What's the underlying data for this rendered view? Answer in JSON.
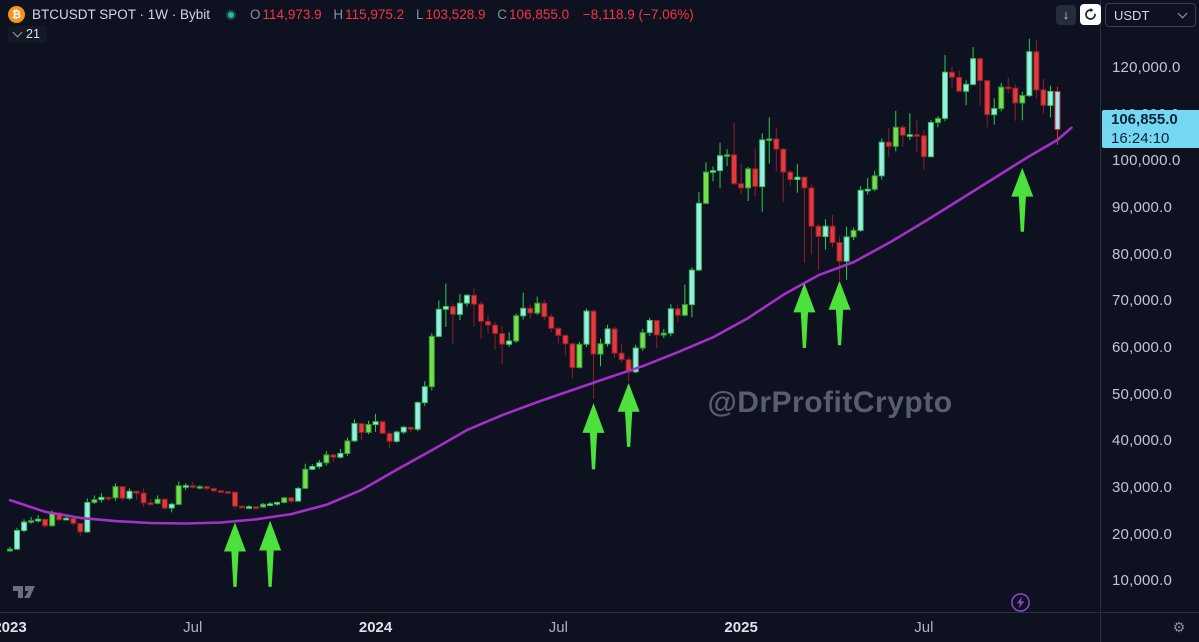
{
  "header": {
    "title": "BTCUSDT SPOT · 1W · Bybit",
    "ohlc": {
      "o_label": "O",
      "o": "114,973.9",
      "h_label": "H",
      "h": "115,975.2",
      "l_label": "L",
      "l": "103,528.9",
      "c_label": "C",
      "c": "106,855.0"
    },
    "change": "−8,118.9 (−7.06%)"
  },
  "legend": {
    "ma_length": "21"
  },
  "toolbar": {
    "currency": "USDT",
    "download_icon": "↓",
    "gear_icon": "⚙"
  },
  "watermark": "@DrProfitCrypto",
  "price_badge": {
    "price": "106,855.0",
    "time": "16:24:10"
  },
  "colors": {
    "background": "#0d1120",
    "up_body": "#9fe8f2",
    "up_border": "#2ecc4f",
    "lime_body": "#77dd4a",
    "lime_border": "#2b9e3c",
    "down_body": "#e5383f",
    "down_border": "#8e2026",
    "last_body": "#9fe8f2",
    "last_border": "#d8333c",
    "ma": "#a52fc9",
    "arrow": "#4ce13c",
    "badge_bg": "#76d7f2",
    "badge_text": "#07243a",
    "ohlc_value": "#f23645",
    "axis_text": "#c3c7d1",
    "watermark": "#6b7280"
  },
  "chart_data": {
    "type": "candlestick",
    "title": "BTCUSDT SPOT 1W Bybit",
    "interval": "1W",
    "grid": false,
    "legend_position": "top-left",
    "y_axis": {
      "unit": "USDT",
      "range_k": [
        0,
        134.5
      ],
      "labels": [
        {
          "v": 120000,
          "label": "120,000.0"
        },
        {
          "v": 110000,
          "label": "110,000.0"
        },
        {
          "v": 100000,
          "label": "100,000.0"
        },
        {
          "v": 90000,
          "label": "90,000.0"
        },
        {
          "v": 80000,
          "label": "80,000.0"
        },
        {
          "v": 70000,
          "label": "70,000.0"
        },
        {
          "v": 60000,
          "label": "60,000.0"
        },
        {
          "v": 50000,
          "label": "50,000.0"
        },
        {
          "v": 40000,
          "label": "40,000.0"
        },
        {
          "v": 30000,
          "label": "30,000.0"
        },
        {
          "v": 20000,
          "label": "20,000.0"
        },
        {
          "v": 10000,
          "label": "10,000.0"
        }
      ]
    },
    "x_axis": {
      "ticks": [
        {
          "week": 0,
          "label": "2023",
          "bold": true
        },
        {
          "week": 26,
          "label": "Jul",
          "bold": false
        },
        {
          "week": 52,
          "label": "2024",
          "bold": true
        },
        {
          "week": 78,
          "label": "Jul",
          "bold": false
        },
        {
          "week": 104,
          "label": "2025",
          "bold": true
        },
        {
          "week": 130,
          "label": "Jul",
          "bold": false
        }
      ]
    },
    "candles_format": [
      "open_k",
      "high_k",
      "low_k",
      "close_k"
    ],
    "candles": [
      [
        16.5,
        17.4,
        16.3,
        16.9
      ],
      [
        16.9,
        21.5,
        16.9,
        20.9
      ],
      [
        20.9,
        23.3,
        20.5,
        22.7
      ],
      [
        22.7,
        23.8,
        22.3,
        23.0
      ],
      [
        23.0,
        24.2,
        22.6,
        23.3
      ],
      [
        23.3,
        23.4,
        21.4,
        21.9
      ],
      [
        21.9,
        25.2,
        21.7,
        24.6
      ],
      [
        24.6,
        24.9,
        23.0,
        23.2
      ],
      [
        23.2,
        24.1,
        23.1,
        23.5
      ],
      [
        23.5,
        23.6,
        21.9,
        22.4
      ],
      [
        22.4,
        22.5,
        19.6,
        20.6
      ],
      [
        20.6,
        27.8,
        20.4,
        26.9
      ],
      [
        26.9,
        28.4,
        26.6,
        27.5
      ],
      [
        27.5,
        28.9,
        26.9,
        28.0
      ],
      [
        28.0,
        28.1,
        27.2,
        27.9
      ],
      [
        27.9,
        31.0,
        27.3,
        30.3
      ],
      [
        30.3,
        30.4,
        27.2,
        27.8
      ],
      [
        27.8,
        29.9,
        27.4,
        29.3
      ],
      [
        29.3,
        29.4,
        27.5,
        28.9
      ],
      [
        28.9,
        29.9,
        25.9,
        26.8
      ],
      [
        26.8,
        27.7,
        26.1,
        26.7
      ],
      [
        26.7,
        28.4,
        26.5,
        27.6
      ],
      [
        27.6,
        27.7,
        25.3,
        25.7
      ],
      [
        25.7,
        26.8,
        24.8,
        26.5
      ],
      [
        26.5,
        31.4,
        26.3,
        30.5
      ],
      [
        30.5,
        31.0,
        29.5,
        30.5
      ],
      [
        30.5,
        31.3,
        29.9,
        30.3
      ],
      [
        30.3,
        30.6,
        29.7,
        30.3
      ],
      [
        30.3,
        30.4,
        29.5,
        29.9
      ],
      [
        29.9,
        30.0,
        29.0,
        29.4
      ],
      [
        29.4,
        29.5,
        28.9,
        29.2
      ],
      [
        29.2,
        29.4,
        28.8,
        29.1
      ],
      [
        29.1,
        29.2,
        25.4,
        26.1
      ],
      [
        26.1,
        26.3,
        25.8,
        26.0
      ],
      [
        26.0,
        26.3,
        25.6,
        26.0
      ],
      [
        26.0,
        26.1,
        25.3,
        25.9
      ],
      [
        25.9,
        26.8,
        25.8,
        26.5
      ],
      [
        26.5,
        27.0,
        26.3,
        26.6
      ],
      [
        26.6,
        27.1,
        26.2,
        26.9
      ],
      [
        26.9,
        28.1,
        26.7,
        27.9
      ],
      [
        27.9,
        28.0,
        26.8,
        27.2
      ],
      [
        27.2,
        30.2,
        27.1,
        29.9
      ],
      [
        29.9,
        35.2,
        29.8,
        34.0
      ],
      [
        34.0,
        35.1,
        33.9,
        34.6
      ],
      [
        34.6,
        36.0,
        34.1,
        35.4
      ],
      [
        35.4,
        37.9,
        34.8,
        37.1
      ],
      [
        37.1,
        37.4,
        35.6,
        36.6
      ],
      [
        36.6,
        38.4,
        36.3,
        37.4
      ],
      [
        37.4,
        40.8,
        36.9,
        40.1
      ],
      [
        40.1,
        44.7,
        39.9,
        43.8
      ],
      [
        43.8,
        44.0,
        40.2,
        41.9
      ],
      [
        41.9,
        44.4,
        41.5,
        43.6
      ],
      [
        43.6,
        45.9,
        42.0,
        44.2
      ],
      [
        44.2,
        44.4,
        41.5,
        41.7
      ],
      [
        41.7,
        42.2,
        38.5,
        40.0
      ],
      [
        40.0,
        42.3,
        39.7,
        42.0
      ],
      [
        42.0,
        43.3,
        41.6,
        43.0
      ],
      [
        43.0,
        43.1,
        41.9,
        42.6
      ],
      [
        42.6,
        48.6,
        42.2,
        48.3
      ],
      [
        48.3,
        52.9,
        47.6,
        51.7
      ],
      [
        51.7,
        63.2,
        50.9,
        62.5
      ],
      [
        62.5,
        70.2,
        62.3,
        68.3
      ],
      [
        68.3,
        73.8,
        64.5,
        68.9
      ],
      [
        68.9,
        69.6,
        60.8,
        67.2
      ],
      [
        67.2,
        71.6,
        66.0,
        69.6
      ],
      [
        69.6,
        71.5,
        68.9,
        71.3
      ],
      [
        71.3,
        72.8,
        64.6,
        69.4
      ],
      [
        69.4,
        70.0,
        61.9,
        65.7
      ],
      [
        65.7,
        67.0,
        63.1,
        64.9
      ],
      [
        64.9,
        65.5,
        59.6,
        63.1
      ],
      [
        63.1,
        64.7,
        56.5,
        60.8
      ],
      [
        60.8,
        63.4,
        60.2,
        61.5
      ],
      [
        61.5,
        67.4,
        61.1,
        66.9
      ],
      [
        66.9,
        71.9,
        66.1,
        68.5
      ],
      [
        68.5,
        69.4,
        66.3,
        67.5
      ],
      [
        67.5,
        71.0,
        67.1,
        69.6
      ],
      [
        69.6,
        70.3,
        66.0,
        66.7
      ],
      [
        66.7,
        67.3,
        63.4,
        64.2
      ],
      [
        64.2,
        64.5,
        61.0,
        62.7
      ],
      [
        62.7,
        63.0,
        58.4,
        60.9
      ],
      [
        60.9,
        61.2,
        53.5,
        55.8
      ],
      [
        55.8,
        61.3,
        55.6,
        60.8
      ],
      [
        60.8,
        68.4,
        60.2,
        67.9
      ],
      [
        67.9,
        68.2,
        49.1,
        58.7
      ],
      [
        58.7,
        62.0,
        56.1,
        60.9
      ],
      [
        60.9,
        65.0,
        60.3,
        64.1
      ],
      [
        64.1,
        64.5,
        57.9,
        58.9
      ],
      [
        58.9,
        61.0,
        56.9,
        57.5
      ],
      [
        57.5,
        58.2,
        52.8,
        54.9
      ],
      [
        54.9,
        60.7,
        54.6,
        60.0
      ],
      [
        60.0,
        64.1,
        59.4,
        63.3
      ],
      [
        63.3,
        66.5,
        62.6,
        65.9
      ],
      [
        65.9,
        66.1,
        60.0,
        62.8
      ],
      [
        62.8,
        64.1,
        62.1,
        63.2
      ],
      [
        63.2,
        69.4,
        62.5,
        68.4
      ],
      [
        68.4,
        69.3,
        65.5,
        67.0
      ],
      [
        67.0,
        73.6,
        66.8,
        69.3
      ],
      [
        69.3,
        77.3,
        66.6,
        76.7
      ],
      [
        76.7,
        93.4,
        76.5,
        91.0
      ],
      [
        91.0,
        99.8,
        90.8,
        97.7
      ],
      [
        97.7,
        98.9,
        95.7,
        98.0
      ],
      [
        98.0,
        104.0,
        94.2,
        101.2
      ],
      [
        101.2,
        102.6,
        99.0,
        101.4
      ],
      [
        101.4,
        108.3,
        95.0,
        95.2
      ],
      [
        95.2,
        99.5,
        92.9,
        94.3
      ],
      [
        94.3,
        98.8,
        91.5,
        98.4
      ],
      [
        98.4,
        102.7,
        92.5,
        94.6
      ],
      [
        94.6,
        106.0,
        89.2,
        104.6
      ],
      [
        104.6,
        109.4,
        99.5,
        104.8
      ],
      [
        104.8,
        107.2,
        97.8,
        102.6
      ],
      [
        102.6,
        102.8,
        91.3,
        97.7
      ],
      [
        97.7,
        98.1,
        94.7,
        96.1
      ],
      [
        96.1,
        99.5,
        93.3,
        96.6
      ],
      [
        96.6,
        96.7,
        78.2,
        94.3
      ],
      [
        94.3,
        95.0,
        80.1,
        86.1
      ],
      [
        86.1,
        86.5,
        76.6,
        83.9
      ],
      [
        83.9,
        87.6,
        81.1,
        86.1
      ],
      [
        86.1,
        88.5,
        81.6,
        82.6
      ],
      [
        82.6,
        83.9,
        74.5,
        78.6
      ],
      [
        78.6,
        86.0,
        74.6,
        83.8
      ],
      [
        83.8,
        85.8,
        83.1,
        85.2
      ],
      [
        85.2,
        94.7,
        84.9,
        93.8
      ],
      [
        93.8,
        96.4,
        92.9,
        94.0
      ],
      [
        94.0,
        98.0,
        93.6,
        96.9
      ],
      [
        96.9,
        104.9,
        96.1,
        104.1
      ],
      [
        104.1,
        107.1,
        101.0,
        103.2
      ],
      [
        103.2,
        110.8,
        102.1,
        107.3
      ],
      [
        107.3,
        107.8,
        103.1,
        105.6
      ],
      [
        105.6,
        110.3,
        104.6,
        105.7
      ],
      [
        105.7,
        108.9,
        102.1,
        105.5
      ],
      [
        105.5,
        106.8,
        98.2,
        101.0
      ],
      [
        101.0,
        108.8,
        100.9,
        108.3
      ],
      [
        108.3,
        109.7,
        107.3,
        109.2
      ],
      [
        109.2,
        122.8,
        108.6,
        119.1
      ],
      [
        119.1,
        120.2,
        115.7,
        118.0
      ],
      [
        118.0,
        119.5,
        114.8,
        115.0
      ],
      [
        115.0,
        117.4,
        112.0,
        116.5
      ],
      [
        116.5,
        124.5,
        116.3,
        122.0
      ],
      [
        122.0,
        122.4,
        111.9,
        117.3
      ],
      [
        117.3,
        117.4,
        107.3,
        110.0
      ],
      [
        110.0,
        113.5,
        107.9,
        111.3
      ],
      [
        111.3,
        116.8,
        110.7,
        115.9
      ],
      [
        115.9,
        118.0,
        114.6,
        115.7
      ],
      [
        115.7,
        116.5,
        108.7,
        112.5
      ],
      [
        112.5,
        114.9,
        108.8,
        114.1
      ],
      [
        114.1,
        126.3,
        113.8,
        123.5
      ],
      [
        123.5,
        126.0,
        113.5,
        115.3
      ],
      [
        115.3,
        117.7,
        110.2,
        112.0
      ],
      [
        112.0,
        116.2,
        109.4,
        114.97
      ],
      [
        114.974,
        115.975,
        103.529,
        106.855
      ]
    ],
    "ma": {
      "name": "MA",
      "length": 21,
      "samples": [
        [
          0,
          27.4
        ],
        [
          5,
          24.9
        ],
        [
          10,
          23.6
        ],
        [
          15,
          22.9
        ],
        [
          20,
          22.5
        ],
        [
          25,
          22.4
        ],
        [
          30,
          22.6
        ],
        [
          35,
          23.3
        ],
        [
          40,
          24.4
        ],
        [
          45,
          26.4
        ],
        [
          50,
          29.6
        ],
        [
          55,
          33.9
        ],
        [
          60,
          38.1
        ],
        [
          65,
          42.4
        ],
        [
          70,
          45.6
        ],
        [
          75,
          48.4
        ],
        [
          80,
          51.0
        ],
        [
          85,
          53.6
        ],
        [
          90,
          56.1
        ],
        [
          95,
          59.1
        ],
        [
          100,
          62.3
        ],
        [
          105,
          66.4
        ],
        [
          110,
          71.4
        ],
        [
          115,
          75.6
        ],
        [
          120,
          78.4
        ],
        [
          125,
          82.5
        ],
        [
          130,
          87.0
        ],
        [
          135,
          91.7
        ],
        [
          140,
          96.4
        ],
        [
          145,
          101.1
        ],
        [
          149,
          104.6
        ],
        [
          151,
          107.2
        ]
      ]
    },
    "annotations": {
      "buy_arrows": [
        {
          "week": 32,
          "tip_k": 22.6,
          "base_k": 8.8
        },
        {
          "week": 37,
          "tip_k": 23.0,
          "base_k": 8.8
        },
        {
          "week": 83,
          "tip_k": 48.2,
          "base_k": 34.0
        },
        {
          "week": 88,
          "tip_k": 52.5,
          "base_k": 38.8
        },
        {
          "week": 113,
          "tip_k": 73.9,
          "base_k": 60.0
        },
        {
          "week": 118,
          "tip_k": 74.4,
          "base_k": 60.6
        },
        {
          "week": 144,
          "tip_k": 98.6,
          "base_k": 84.9
        }
      ]
    }
  }
}
